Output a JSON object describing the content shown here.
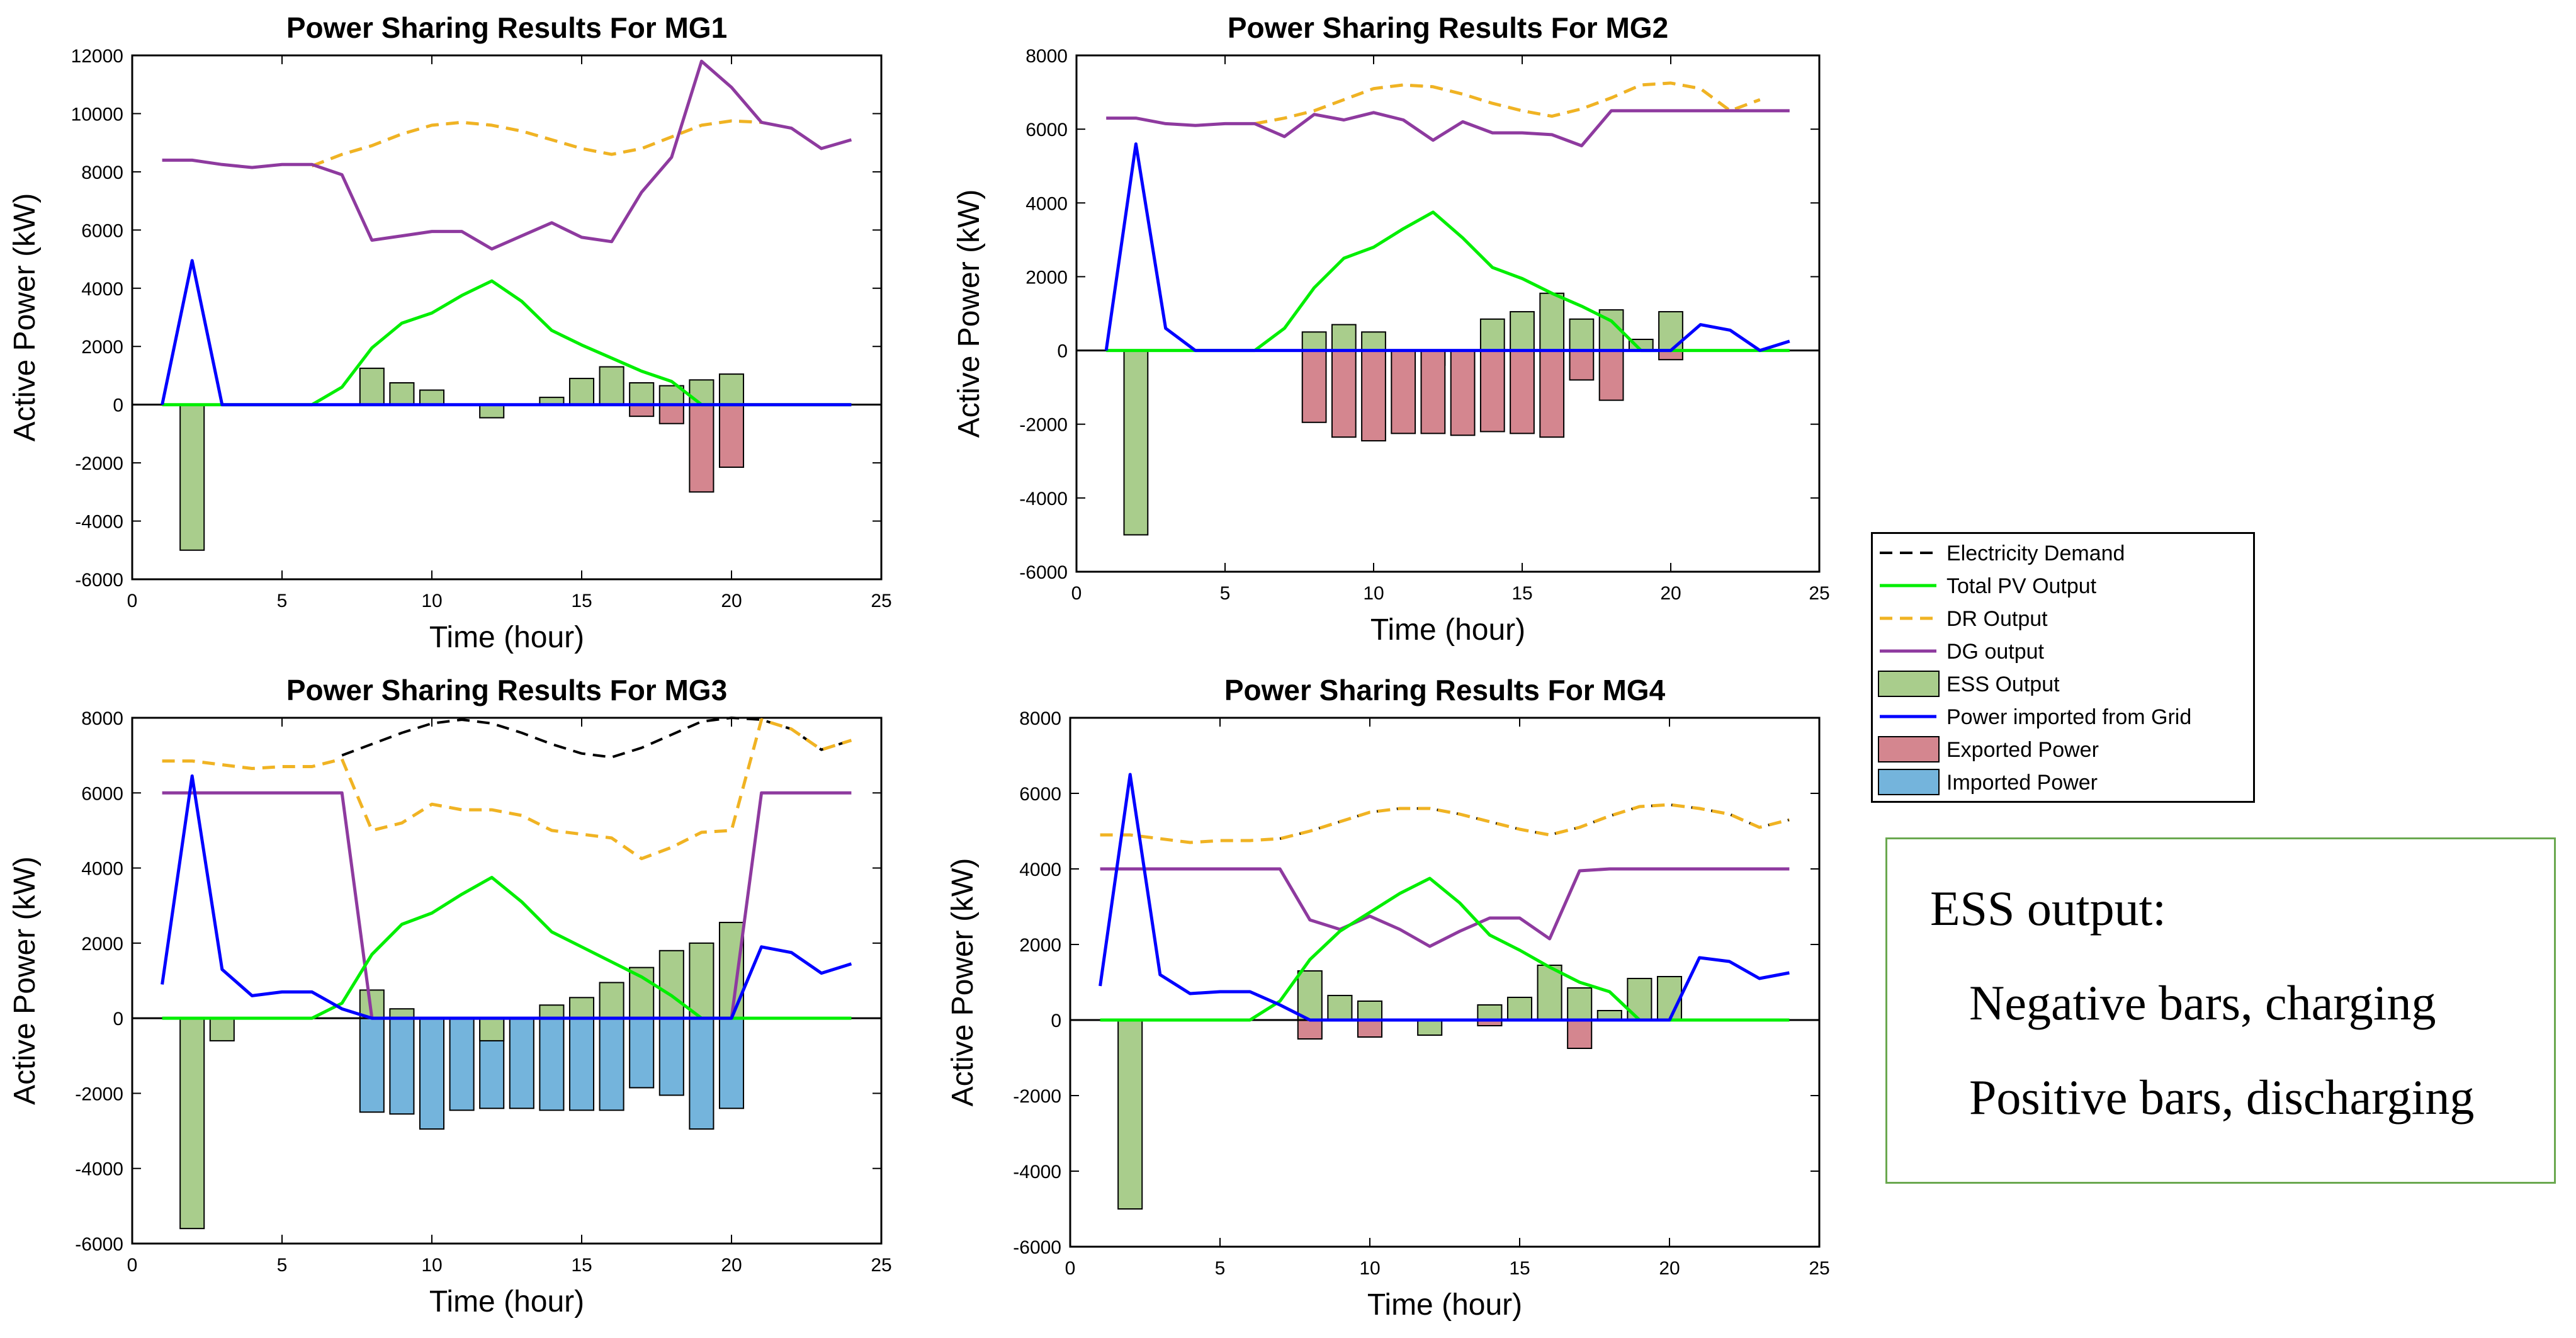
{
  "colors": {
    "demand": "#000000",
    "pv": "#00ee00",
    "dr": "#f0b323",
    "dg": "#8e3a9f",
    "ess_fill": "#a9cd8c",
    "grid": "#0000ff",
    "exported_fill": "#d4868f",
    "imported_fill": "#74b4dc"
  },
  "legend": {
    "items": [
      {
        "label": "Electricity Demand",
        "kind": "dash",
        "color_key": "demand"
      },
      {
        "label": "Total PV Output",
        "kind": "line",
        "color_key": "pv"
      },
      {
        "label": "DR Output",
        "kind": "dash",
        "color_key": "dr"
      },
      {
        "label": "DG output",
        "kind": "line",
        "color_key": "dg"
      },
      {
        "label": "ESS Output",
        "kind": "bar",
        "color_key": "ess_fill"
      },
      {
        "label": "Power imported from Grid",
        "kind": "line",
        "color_key": "grid"
      },
      {
        "label": "Exported Power",
        "kind": "bar",
        "color_key": "exported_fill"
      },
      {
        "label": "Imported Power",
        "kind": "bar",
        "color_key": "imported_fill"
      }
    ]
  },
  "note": {
    "title": "ESS output:",
    "line1": "Negative bars, charging",
    "line2": "Positive bars, discharging"
  },
  "chart_data": [
    {
      "type": "bar",
      "title": "Power Sharing Results For MG1",
      "xlabel": "Time (hour)",
      "ylabel": "Active Power (kW)",
      "xlim": [
        0,
        25
      ],
      "ylim": [
        -6000,
        12000
      ],
      "xticks": [
        0,
        5,
        10,
        15,
        20,
        25
      ],
      "yticks": [
        -6000,
        -4000,
        -2000,
        0,
        2000,
        4000,
        6000,
        8000,
        10000,
        12000
      ],
      "x": [
        1,
        2,
        3,
        4,
        5,
        6,
        7,
        8,
        9,
        10,
        11,
        12,
        13,
        14,
        15,
        16,
        17,
        18,
        19,
        20,
        21,
        22,
        23,
        24
      ],
      "series": [
        {
          "name": "ESS Output",
          "key": "ess",
          "kind": "bar",
          "values": [
            0,
            -5000,
            0,
            0,
            0,
            0,
            0,
            1250,
            750,
            500,
            0,
            -450,
            0,
            250,
            900,
            1300,
            750,
            650,
            850,
            1050,
            0,
            0,
            0,
            0
          ]
        },
        {
          "name": "Exported Power",
          "key": "exported",
          "kind": "bar",
          "values": [
            0,
            0,
            0,
            0,
            0,
            0,
            0,
            0,
            0,
            0,
            0,
            0,
            0,
            0,
            0,
            0,
            -400,
            -650,
            -3000,
            -2150,
            0,
            0,
            0,
            0
          ]
        },
        {
          "name": "Electricity Demand",
          "key": "demand",
          "kind": "dash",
          "values": [
            null,
            null,
            null,
            null,
            null,
            8200,
            8600,
            8900,
            9300,
            9600,
            9700,
            9600,
            9400,
            9100,
            8800,
            8600,
            8800,
            9200,
            9600,
            9750,
            9700,
            null,
            null,
            null
          ]
        },
        {
          "name": "DR Output",
          "key": "dr",
          "kind": "dash",
          "values": [
            null,
            null,
            null,
            null,
            null,
            8200,
            8600,
            8900,
            9300,
            9600,
            9700,
            9600,
            9400,
            9100,
            8800,
            8600,
            8800,
            9200,
            9600,
            9750,
            9700,
            null,
            null,
            null
          ]
        },
        {
          "name": "DG output",
          "key": "dg",
          "kind": "line",
          "values": [
            8400,
            8400,
            8250,
            8150,
            8250,
            8250,
            7900,
            5650,
            5800,
            5950,
            5950,
            5350,
            5800,
            6250,
            5750,
            5600,
            7300,
            8500,
            11800,
            10900,
            9700,
            9500,
            8800,
            9100
          ]
        },
        {
          "name": "Total PV Output",
          "key": "pv",
          "kind": "line",
          "values": [
            0,
            0,
            0,
            0,
            0,
            0,
            600,
            1950,
            2800,
            3150,
            3750,
            4250,
            3550,
            2550,
            2050,
            1600,
            1150,
            800,
            0,
            0,
            0,
            0,
            0,
            0
          ]
        },
        {
          "name": "Power imported from Grid",
          "key": "grid",
          "kind": "line",
          "values": [
            0,
            4950,
            0,
            0,
            0,
            0,
            0,
            0,
            0,
            0,
            0,
            0,
            0,
            0,
            0,
            0,
            0,
            0,
            0,
            0,
            0,
            0,
            0,
            0
          ]
        }
      ]
    },
    {
      "type": "bar",
      "title": "Power Sharing Results For MG2",
      "xlabel": "Time (hour)",
      "ylabel": "Active Power (kW)",
      "xlim": [
        0,
        25
      ],
      "ylim": [
        -6000,
        8000
      ],
      "xticks": [
        0,
        5,
        10,
        15,
        20,
        25
      ],
      "yticks": [
        -6000,
        -4000,
        -2000,
        0,
        2000,
        4000,
        6000,
        8000
      ],
      "x": [
        1,
        2,
        3,
        4,
        5,
        6,
        7,
        8,
        9,
        10,
        11,
        12,
        13,
        14,
        15,
        16,
        17,
        18,
        19,
        20,
        21,
        22,
        23,
        24
      ],
      "series": [
        {
          "name": "ESS Output",
          "key": "ess",
          "kind": "bar",
          "values": [
            0,
            -5000,
            0,
            0,
            0,
            0,
            0,
            500,
            700,
            500,
            0,
            -400,
            0,
            850,
            1050,
            1550,
            850,
            1100,
            300,
            1050,
            0,
            0,
            0,
            0
          ]
        },
        {
          "name": "Exported Power",
          "key": "exported",
          "kind": "bar",
          "values": [
            0,
            0,
            0,
            0,
            0,
            0,
            0,
            -1950,
            -2350,
            -2450,
            -2250,
            -2250,
            -2300,
            -2200,
            -2250,
            -2350,
            -800,
            -1350,
            0,
            -250,
            0,
            0,
            0,
            0
          ]
        },
        {
          "name": "Electricity Demand",
          "key": "demand",
          "kind": "dash",
          "values": [
            null,
            null,
            null,
            null,
            null,
            6150,
            6300,
            6500,
            6800,
            7100,
            7200,
            7150,
            6950,
            6700,
            6500,
            6350,
            6550,
            6850,
            7200,
            7250,
            7100,
            6500,
            6800,
            null
          ]
        },
        {
          "name": "DR Output",
          "key": "dr",
          "kind": "dash",
          "values": [
            null,
            null,
            null,
            null,
            null,
            6150,
            6300,
            6500,
            6800,
            7100,
            7200,
            7150,
            6950,
            6700,
            6500,
            6350,
            6550,
            6850,
            7200,
            7250,
            7100,
            6500,
            6800,
            null
          ]
        },
        {
          "name": "DG output",
          "key": "dg",
          "kind": "line",
          "values": [
            6300,
            6300,
            6150,
            6100,
            6150,
            6150,
            5800,
            6400,
            6250,
            6450,
            6250,
            5700,
            6200,
            5900,
            5900,
            5850,
            5550,
            6500,
            6500,
            6500,
            6500,
            6500,
            6500,
            6500
          ]
        },
        {
          "name": "Total PV Output",
          "key": "pv",
          "kind": "line",
          "values": [
            0,
            0,
            0,
            0,
            0,
            0,
            600,
            1700,
            2500,
            2800,
            3300,
            3750,
            3050,
            2250,
            1950,
            1550,
            1200,
            800,
            0,
            0,
            0,
            0,
            0,
            0
          ]
        },
        {
          "name": "Power imported from Grid",
          "key": "grid",
          "kind": "line",
          "values": [
            0,
            5600,
            600,
            0,
            0,
            0,
            0,
            0,
            0,
            0,
            0,
            0,
            0,
            0,
            0,
            0,
            0,
            0,
            0,
            0,
            700,
            550,
            0,
            250
          ]
        }
      ]
    },
    {
      "type": "bar",
      "title": "Power Sharing Results For MG3",
      "xlabel": "Time (hour)",
      "ylabel": "Active Power (kW)",
      "xlim": [
        0,
        25
      ],
      "ylim": [
        -6000,
        8000
      ],
      "xticks": [
        0,
        5,
        10,
        15,
        20,
        25
      ],
      "yticks": [
        -6000,
        -4000,
        -2000,
        0,
        2000,
        4000,
        6000,
        8000
      ],
      "x": [
        1,
        2,
        3,
        4,
        5,
        6,
        7,
        8,
        9,
        10,
        11,
        12,
        13,
        14,
        15,
        16,
        17,
        18,
        19,
        20,
        21,
        22,
        23,
        24
      ],
      "series": [
        {
          "name": "Imported Power",
          "key": "imported",
          "kind": "bar",
          "values": [
            0,
            0,
            0,
            0,
            0,
            0,
            0,
            -2500,
            -2550,
            -2950,
            -2450,
            -2400,
            -2400,
            -2450,
            -2450,
            -2450,
            -1850,
            -2050,
            -2950,
            -2400,
            0,
            0,
            0,
            0
          ]
        },
        {
          "name": "ESS Output",
          "key": "ess",
          "kind": "bar",
          "values": [
            0,
            -5600,
            -600,
            0,
            0,
            0,
            0,
            750,
            250,
            0,
            0,
            -600,
            0,
            350,
            550,
            950,
            1350,
            1800,
            2000,
            2550,
            0,
            0,
            0,
            0
          ]
        },
        {
          "name": "Electricity Demand",
          "key": "demand",
          "kind": "dash",
          "values": [
            null,
            null,
            null,
            null,
            null,
            null,
            7000,
            7300,
            7600,
            7850,
            7950,
            7850,
            7600,
            7300,
            7050,
            6950,
            7200,
            7550,
            7900,
            8000,
            7950,
            7700,
            7150,
            7400
          ]
        },
        {
          "name": "DR Output",
          "key": "dr",
          "kind": "dash",
          "values": [
            6850,
            6850,
            6750,
            6650,
            6700,
            6700,
            6900,
            5000,
            5200,
            5700,
            5550,
            5550,
            5400,
            5000,
            4900,
            4800,
            4250,
            4550,
            4950,
            5000,
            7950,
            7700,
            7150,
            7400
          ]
        },
        {
          "name": "DG output",
          "key": "dg",
          "kind": "line",
          "values": [
            6000,
            6000,
            6000,
            6000,
            6000,
            6000,
            6000,
            0,
            0,
            0,
            0,
            0,
            0,
            0,
            0,
            0,
            0,
            0,
            0,
            0,
            6000,
            6000,
            6000,
            6000
          ]
        },
        {
          "name": "Total PV Output",
          "key": "pv",
          "kind": "line",
          "values": [
            0,
            0,
            0,
            0,
            0,
            0,
            400,
            1700,
            2500,
            2800,
            3300,
            3750,
            3100,
            2300,
            1900,
            1500,
            1100,
            600,
            0,
            0,
            0,
            0,
            0,
            0
          ]
        },
        {
          "name": "Power imported from Grid",
          "key": "grid",
          "kind": "line",
          "values": [
            900,
            6450,
            1300,
            600,
            700,
            700,
            250,
            0,
            0,
            0,
            0,
            0,
            0,
            0,
            0,
            0,
            0,
            0,
            0,
            0,
            1900,
            1750,
            1200,
            1450
          ]
        }
      ]
    },
    {
      "type": "bar",
      "title": "Power Sharing Results For MG4",
      "xlabel": "Time (hour)",
      "ylabel": "Active Power (kW)",
      "xlim": [
        0,
        25
      ],
      "ylim": [
        -6000,
        8000
      ],
      "xticks": [
        0,
        5,
        10,
        15,
        20,
        25
      ],
      "yticks": [
        -6000,
        -4000,
        -2000,
        0,
        2000,
        4000,
        6000,
        8000
      ],
      "x": [
        1,
        2,
        3,
        4,
        5,
        6,
        7,
        8,
        9,
        10,
        11,
        12,
        13,
        14,
        15,
        16,
        17,
        18,
        19,
        20,
        21,
        22,
        23,
        24
      ],
      "series": [
        {
          "name": "ESS Output",
          "key": "ess",
          "kind": "bar",
          "values": [
            0,
            -5000,
            0,
            0,
            0,
            0,
            0,
            1300,
            650,
            500,
            0,
            -400,
            0,
            400,
            600,
            1450,
            850,
            250,
            1100,
            1150,
            0,
            0,
            0,
            0
          ]
        },
        {
          "name": "Exported Power",
          "key": "exported",
          "kind": "bar",
          "values": [
            0,
            0,
            0,
            0,
            0,
            0,
            0,
            -500,
            0,
            -450,
            0,
            0,
            0,
            -150,
            0,
            0,
            -750,
            0,
            0,
            0,
            0,
            0,
            0,
            0
          ]
        },
        {
          "name": "Electricity Demand",
          "key": "demand",
          "kind": "dash",
          "values": [
            null,
            null,
            null,
            null,
            null,
            null,
            4800,
            5000,
            5250,
            5500,
            5600,
            5600,
            5450,
            5250,
            5050,
            4900,
            5100,
            5400,
            5650,
            5700,
            5600,
            5450,
            5100,
            5300
          ]
        },
        {
          "name": "DR Output",
          "key": "dr",
          "kind": "dash",
          "values": [
            4900,
            4900,
            4800,
            4700,
            4750,
            4750,
            4800,
            5000,
            5250,
            5500,
            5600,
            5600,
            5450,
            5250,
            5050,
            4900,
            5100,
            5400,
            5650,
            5700,
            5600,
            5450,
            5100,
            5300
          ]
        },
        {
          "name": "DG output",
          "key": "dg",
          "kind": "line",
          "values": [
            4000,
            4000,
            4000,
            4000,
            4000,
            4000,
            4000,
            2650,
            2400,
            2750,
            2400,
            1950,
            2350,
            2700,
            2700,
            2150,
            3950,
            4000,
            4000,
            4000,
            4000,
            4000,
            4000,
            4000
          ]
        },
        {
          "name": "Total PV Output",
          "key": "pv",
          "kind": "line",
          "values": [
            0,
            0,
            0,
            0,
            0,
            0,
            500,
            1600,
            2350,
            2850,
            3350,
            3750,
            3100,
            2250,
            1850,
            1400,
            1000,
            750,
            0,
            0,
            0,
            0,
            0,
            0
          ]
        },
        {
          "name": "Power imported from Grid",
          "key": "grid",
          "kind": "line",
          "values": [
            900,
            6500,
            1200,
            700,
            750,
            750,
            400,
            0,
            0,
            0,
            0,
            0,
            0,
            0,
            0,
            0,
            0,
            0,
            0,
            0,
            1650,
            1550,
            1100,
            1250
          ]
        }
      ]
    }
  ]
}
